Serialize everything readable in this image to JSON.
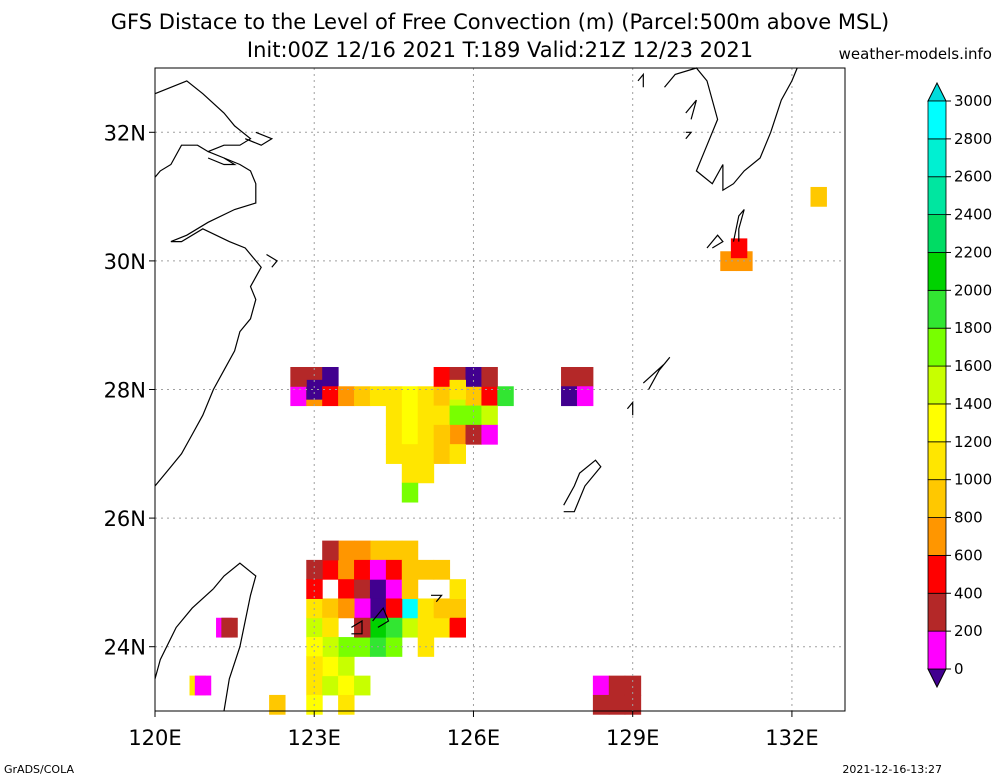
{
  "title_line1": "GFS Distace to the Level of Free Convection (m) (Parcel:500m above MSL)",
  "title_line2": "Init:00Z 12/16 2021 T:189 Valid:21Z 12/23 2021",
  "site": "weather-models.info",
  "footer_left": "GrADS/COLA",
  "footer_right": "2021-12-16-13:27",
  "map": {
    "lon_min": 120,
    "lon_max": 133,
    "lat_min": 23,
    "lat_max": 33,
    "lon_ticks": [
      {
        "value": 120,
        "label": "120E"
      },
      {
        "value": 123,
        "label": "123E"
      },
      {
        "value": 126,
        "label": "126E"
      },
      {
        "value": 129,
        "label": "129E"
      },
      {
        "value": 132,
        "label": "132E"
      }
    ],
    "lat_ticks": [
      {
        "value": 24,
        "label": "24N"
      },
      {
        "value": 26,
        "label": "26N"
      },
      {
        "value": 28,
        "label": "28N"
      },
      {
        "value": 30,
        "label": "30N"
      },
      {
        "value": 32,
        "label": "32N"
      }
    ]
  },
  "colorbar": {
    "labels": [
      "0",
      "200",
      "400",
      "600",
      "800",
      "1000",
      "1200",
      "1400",
      "1600",
      "1800",
      "2000",
      "2200",
      "2400",
      "2600",
      "2800",
      "3000"
    ],
    "colors": [
      "#41008f",
      "#ff00ff",
      "#b42828",
      "#ff0000",
      "#ff9600",
      "#ffc800",
      "#ffe600",
      "#ffff00",
      "#c8ff00",
      "#78ff00",
      "#32e632",
      "#00d200",
      "#00dc64",
      "#00e6a0",
      "#00f0d2",
      "#00ffff"
    ],
    "under_color": "#41008f",
    "over_color": "#00dcdc"
  },
  "colors": {
    "coastline": "#000000",
    "grid": "#a0a0a0"
  },
  "field_cells": [
    {
      "lon": 120.8,
      "lat": 23.4,
      "c": "#ffe600"
    },
    {
      "lon": 120.9,
      "lat": 23.4,
      "c": "#ff00ff"
    },
    {
      "lon": 121.3,
      "lat": 24.3,
      "c": "#ff00ff"
    },
    {
      "lon": 121.4,
      "lat": 24.3,
      "c": "#b42828"
    },
    {
      "lon": 122.3,
      "lat": 23.1,
      "c": "#ffc800"
    },
    {
      "lon": 123.0,
      "lat": 23.4,
      "c": "#ffe600"
    },
    {
      "lon": 123.0,
      "lat": 23.1,
      "c": "#ffff00"
    },
    {
      "lon": 123.3,
      "lat": 23.4,
      "c": "#c8ff00"
    },
    {
      "lon": 123.3,
      "lat": 23.7,
      "c": "#ffff00"
    },
    {
      "lon": 123.6,
      "lat": 23.7,
      "c": "#c8ff00"
    },
    {
      "lon": 123.6,
      "lat": 23.4,
      "c": "#ffff00"
    },
    {
      "lon": 123.6,
      "lat": 23.1,
      "c": "#ffe600"
    },
    {
      "lon": 123.9,
      "lat": 23.4,
      "c": "#c8ff00"
    },
    {
      "lon": 123.9,
      "lat": 24.0,
      "c": "#78ff00"
    },
    {
      "lon": 124.2,
      "lat": 24.0,
      "c": "#32e632"
    },
    {
      "lon": 124.5,
      "lat": 24.0,
      "c": "#78ff00"
    },
    {
      "lon": 124.8,
      "lat": 24.3,
      "c": "#c8ff00"
    },
    {
      "lon": 125.1,
      "lat": 24.0,
      "c": "#ffe600"
    },
    {
      "lon": 125.4,
      "lat": 24.3,
      "c": "#ffe600"
    },
    {
      "lon": 125.7,
      "lat": 24.6,
      "c": "#ffc800"
    },
    {
      "lon": 125.7,
      "lat": 24.9,
      "c": "#ffe600"
    },
    {
      "lon": 123.0,
      "lat": 24.3,
      "c": "#c8ff00"
    },
    {
      "lon": 123.0,
      "lat": 24.6,
      "c": "#ffe600"
    },
    {
      "lon": 123.3,
      "lat": 25.2,
      "c": "#ff0000"
    },
    {
      "lon": 123.6,
      "lat": 25.2,
      "c": "#ff9600"
    },
    {
      "lon": 125.1,
      "lat": 25.2,
      "c": "#ffc800"
    },
    {
      "lon": 125.4,
      "lat": 25.2,
      "c": "#ffc800"
    },
    {
      "lon": 125.7,
      "lat": 24.3,
      "c": "#ff0000"
    },
    {
      "lon": 123.3,
      "lat": 24.6,
      "c": "#ffc800"
    },
    {
      "lon": 123.3,
      "lat": 24.3,
      "c": "#ffe600"
    },
    {
      "lon": 123.6,
      "lat": 24.0,
      "c": "#78ff00"
    },
    {
      "lon": 124.2,
      "lat": 24.3,
      "c": "#00d200"
    },
    {
      "lon": 124.8,
      "lat": 24.6,
      "c": "#00ffff"
    },
    {
      "lon": 125.1,
      "lat": 24.6,
      "c": "#ffe600"
    },
    {
      "lon": 125.4,
      "lat": 24.6,
      "c": "#ffc800"
    },
    {
      "lon": 124.5,
      "lat": 25.5,
      "c": "#ffc800"
    },
    {
      "lon": 124.8,
      "lat": 25.5,
      "c": "#ffc800"
    },
    {
      "lon": 124.2,
      "lat": 25.5,
      "c": "#ffc800"
    },
    {
      "lon": 123.9,
      "lat": 25.5,
      "c": "#ff9600"
    },
    {
      "lon": 123.6,
      "lat": 25.5,
      "c": "#ff9600"
    },
    {
      "lon": 123.3,
      "lat": 25.5,
      "c": "#b42828"
    },
    {
      "lon": 123.0,
      "lat": 25.2,
      "c": "#b42828"
    },
    {
      "lon": 123.0,
      "lat": 24.9,
      "c": "#ff0000"
    },
    {
      "lon": 123.6,
      "lat": 24.9,
      "c": "#ff0000"
    },
    {
      "lon": 123.9,
      "lat": 24.9,
      "c": "#b42828"
    },
    {
      "lon": 124.2,
      "lat": 24.9,
      "c": "#41008f"
    },
    {
      "lon": 124.2,
      "lat": 24.6,
      "c": "#41008f"
    },
    {
      "lon": 123.9,
      "lat": 24.6,
      "c": "#ff00ff"
    },
    {
      "lon": 124.5,
      "lat": 24.9,
      "c": "#ff00ff"
    },
    {
      "lon": 124.5,
      "lat": 24.6,
      "c": "#ff0000"
    },
    {
      "lon": 123.9,
      "lat": 25.2,
      "c": "#ff0000"
    },
    {
      "lon": 124.2,
      "lat": 25.2,
      "c": "#ff00ff"
    },
    {
      "lon": 124.5,
      "lat": 25.2,
      "c": "#ff0000"
    },
    {
      "lon": 124.8,
      "lat": 25.2,
      "c": "#ffc800"
    },
    {
      "lon": 124.8,
      "lat": 24.9,
      "c": "#ffc800"
    },
    {
      "lon": 123.6,
      "lat": 24.6,
      "c": "#ff9600"
    },
    {
      "lon": 124.5,
      "lat": 24.3,
      "c": "#32e632"
    },
    {
      "lon": 123.9,
      "lat": 24.3,
      "c": "#b42828"
    },
    {
      "lon": 123.3,
      "lat": 24.0,
      "c": "#c8ff00"
    },
    {
      "lon": 123.0,
      "lat": 24.0,
      "c": "#ffff00"
    },
    {
      "lon": 123.0,
      "lat": 23.7,
      "c": "#ffe600"
    },
    {
      "lon": 125.1,
      "lat": 24.3,
      "c": "#ffe600"
    },
    {
      "lon": 122.7,
      "lat": 27.9,
      "c": "#ff00ff"
    },
    {
      "lon": 123.0,
      "lat": 28.2,
      "c": "#b42828"
    },
    {
      "lon": 123.0,
      "lat": 27.9,
      "c": "#ff9600"
    },
    {
      "lon": 123.0,
      "lat": 28.0,
      "c": "#41008f"
    },
    {
      "lon": 122.7,
      "lat": 28.2,
      "c": "#b42828"
    },
    {
      "lon": 123.3,
      "lat": 28.2,
      "c": "#41008f"
    },
    {
      "lon": 123.3,
      "lat": 27.9,
      "c": "#ff0000"
    },
    {
      "lon": 123.6,
      "lat": 27.9,
      "c": "#ff9600"
    },
    {
      "lon": 123.9,
      "lat": 27.9,
      "c": "#ffc800"
    },
    {
      "lon": 124.2,
      "lat": 27.9,
      "c": "#ffe600"
    },
    {
      "lon": 124.5,
      "lat": 27.9,
      "c": "#ffe600"
    },
    {
      "lon": 124.8,
      "lat": 27.9,
      "c": "#ffff00"
    },
    {
      "lon": 125.1,
      "lat": 27.9,
      "c": "#ffe600"
    },
    {
      "lon": 125.4,
      "lat": 27.9,
      "c": "#ffc800"
    },
    {
      "lon": 125.7,
      "lat": 27.9,
      "c": "#c8ff00"
    },
    {
      "lon": 126.0,
      "lat": 27.9,
      "c": "#ffc800"
    },
    {
      "lon": 126.3,
      "lat": 27.9,
      "c": "#ff0000"
    },
    {
      "lon": 126.6,
      "lat": 27.9,
      "c": "#32e632"
    },
    {
      "lon": 125.4,
      "lat": 28.2,
      "c": "#ff0000"
    },
    {
      "lon": 125.7,
      "lat": 28.2,
      "c": "#b42828"
    },
    {
      "lon": 126.0,
      "lat": 28.2,
      "c": "#41008f"
    },
    {
      "lon": 126.3,
      "lat": 28.2,
      "c": "#b42828"
    },
    {
      "lon": 124.5,
      "lat": 27.6,
      "c": "#ffe600"
    },
    {
      "lon": 124.8,
      "lat": 27.6,
      "c": "#ffff00"
    },
    {
      "lon": 125.1,
      "lat": 27.6,
      "c": "#ffe600"
    },
    {
      "lon": 125.4,
      "lat": 27.6,
      "c": "#ffe600"
    },
    {
      "lon": 125.7,
      "lat": 27.6,
      "c": "#78ff00"
    },
    {
      "lon": 126.0,
      "lat": 27.6,
      "c": "#78ff00"
    },
    {
      "lon": 126.3,
      "lat": 27.6,
      "c": "#c8ff00"
    },
    {
      "lon": 125.7,
      "lat": 27.3,
      "c": "#ff9600"
    },
    {
      "lon": 126.0,
      "lat": 27.3,
      "c": "#b42828"
    },
    {
      "lon": 126.3,
      "lat": 27.3,
      "c": "#ff00ff"
    },
    {
      "lon": 124.5,
      "lat": 27.3,
      "c": "#ffe600"
    },
    {
      "lon": 124.8,
      "lat": 27.3,
      "c": "#ffff00"
    },
    {
      "lon": 125.1,
      "lat": 27.3,
      "c": "#ffe600"
    },
    {
      "lon": 125.4,
      "lat": 27.3,
      "c": "#ffc800"
    },
    {
      "lon": 124.5,
      "lat": 27.0,
      "c": "#ffe600"
    },
    {
      "lon": 124.8,
      "lat": 27.0,
      "c": "#ffe600"
    },
    {
      "lon": 125.1,
      "lat": 27.0,
      "c": "#ffe600"
    },
    {
      "lon": 125.4,
      "lat": 27.0,
      "c": "#ffc800"
    },
    {
      "lon": 125.7,
      "lat": 27.0,
      "c": "#ffe600"
    },
    {
      "lon": 124.8,
      "lat": 26.7,
      "c": "#ffe600"
    },
    {
      "lon": 125.1,
      "lat": 26.7,
      "c": "#ffe600"
    },
    {
      "lon": 124.8,
      "lat": 26.4,
      "c": "#78ff00"
    },
    {
      "lon": 125.7,
      "lat": 28.0,
      "c": "#ffe600"
    },
    {
      "lon": 127.8,
      "lat": 28.2,
      "c": "#b42828"
    },
    {
      "lon": 128.1,
      "lat": 28.2,
      "c": "#b42828"
    },
    {
      "lon": 127.8,
      "lat": 27.9,
      "c": "#41008f"
    },
    {
      "lon": 128.1,
      "lat": 27.9,
      "c": "#ff00ff"
    },
    {
      "lon": 130.8,
      "lat": 30.0,
      "c": "#ff9600"
    },
    {
      "lon": 131.1,
      "lat": 30.0,
      "c": "#ff9600"
    },
    {
      "lon": 131.0,
      "lat": 30.2,
      "c": "#ff0000"
    },
    {
      "lon": 132.5,
      "lat": 31.0,
      "c": "#ffc800"
    },
    {
      "lon": 128.4,
      "lat": 23.4,
      "c": "#ff00ff"
    },
    {
      "lon": 128.7,
      "lat": 23.4,
      "c": "#b42828"
    },
    {
      "lon": 128.7,
      "lat": 23.1,
      "c": "#b42828"
    },
    {
      "lon": 128.4,
      "lat": 23.1,
      "c": "#b42828"
    },
    {
      "lon": 129.0,
      "lat": 23.4,
      "c": "#b42828"
    },
    {
      "lon": 129.0,
      "lat": 23.1,
      "c": "#b42828"
    }
  ],
  "coastlines": [
    [
      [
        120.0,
        32.6
      ],
      [
        120.6,
        32.8
      ],
      [
        120.9,
        32.6
      ],
      [
        121.3,
        32.3
      ],
      [
        121.5,
        32.1
      ],
      [
        121.8,
        31.9
      ],
      [
        121.6,
        31.8
      ],
      [
        121.3,
        31.8
      ],
      [
        121.0,
        31.7
      ],
      [
        120.8,
        31.8
      ],
      [
        120.5,
        31.8
      ],
      [
        120.3,
        31.5
      ],
      [
        120.1,
        31.4
      ],
      [
        120.0,
        31.3
      ]
    ],
    [
      [
        121.3,
        31.6
      ],
      [
        121.6,
        31.5
      ],
      [
        121.8,
        31.4
      ],
      [
        121.9,
        31.2
      ],
      [
        121.9,
        30.9
      ],
      [
        121.5,
        30.8
      ],
      [
        121.0,
        30.6
      ],
      [
        120.6,
        30.4
      ],
      [
        120.3,
        30.3
      ],
      [
        120.5,
        30.3
      ],
      [
        120.9,
        30.5
      ],
      [
        121.4,
        30.3
      ],
      [
        121.7,
        30.2
      ],
      [
        122.0,
        29.9
      ],
      [
        121.8,
        29.6
      ],
      [
        121.9,
        29.4
      ],
      [
        121.8,
        29.1
      ],
      [
        121.6,
        28.9
      ],
      [
        121.5,
        28.6
      ],
      [
        121.3,
        28.3
      ],
      [
        121.1,
        28.0
      ],
      [
        120.9,
        27.6
      ],
      [
        120.7,
        27.3
      ],
      [
        120.5,
        27.0
      ],
      [
        120.3,
        26.8
      ],
      [
        120.0,
        26.5
      ]
    ],
    [
      [
        121.0,
        31.7
      ],
      [
        121.3,
        31.6
      ],
      [
        121.5,
        31.5
      ],
      [
        121.3,
        31.5
      ],
      [
        121.0,
        31.6
      ]
    ],
    [
      [
        121.7,
        31.9
      ],
      [
        122.0,
        31.8
      ],
      [
        122.2,
        31.9
      ],
      [
        121.9,
        32.0
      ]
    ],
    [
      [
        122.1,
        30.1
      ],
      [
        122.3,
        30.0
      ],
      [
        122.2,
        29.9
      ]
    ],
    [
      [
        121.1,
        24.9
      ],
      [
        121.3,
        25.1
      ],
      [
        121.6,
        25.3
      ],
      [
        121.9,
        25.1
      ],
      [
        121.8,
        24.8
      ],
      [
        121.7,
        24.4
      ],
      [
        121.6,
        24.0
      ],
      [
        121.4,
        23.5
      ],
      [
        121.3,
        23.0
      ],
      [
        121.2,
        22.9
      ]
    ],
    [
      [
        120.0,
        23.5
      ],
      [
        120.1,
        23.8
      ],
      [
        120.4,
        24.3
      ],
      [
        120.7,
        24.6
      ],
      [
        121.1,
        24.9
      ]
    ],
    [
      [
        124.1,
        24.4
      ],
      [
        124.3,
        24.6
      ],
      [
        124.4,
        24.4
      ],
      [
        124.2,
        24.3
      ]
    ],
    [
      [
        123.7,
        24.3
      ],
      [
        123.9,
        24.4
      ],
      [
        123.9,
        24.2
      ],
      [
        123.7,
        24.2
      ]
    ],
    [
      [
        125.2,
        24.8
      ],
      [
        125.4,
        24.8
      ],
      [
        125.3,
        24.7
      ]
    ],
    [
      [
        127.7,
        26.2
      ],
      [
        127.9,
        26.5
      ],
      [
        128.0,
        26.7
      ],
      [
        128.3,
        26.9
      ],
      [
        128.4,
        26.8
      ],
      [
        128.1,
        26.5
      ],
      [
        127.9,
        26.1
      ],
      [
        127.7,
        26.1
      ]
    ],
    [
      [
        129.2,
        28.1
      ],
      [
        129.6,
        28.4
      ],
      [
        129.7,
        28.5
      ],
      [
        129.5,
        28.3
      ],
      [
        129.3,
        28.0
      ]
    ],
    [
      [
        128.9,
        27.7
      ],
      [
        129.0,
        27.8
      ],
      [
        129.0,
        27.6
      ]
    ],
    [
      [
        130.4,
        30.2
      ],
      [
        130.6,
        30.4
      ],
      [
        130.7,
        30.3
      ],
      [
        130.5,
        30.2
      ]
    ],
    [
      [
        130.9,
        30.3
      ],
      [
        131.0,
        30.7
      ],
      [
        131.1,
        30.8
      ],
      [
        131.0,
        30.5
      ],
      [
        131.0,
        30.3
      ]
    ],
    [
      [
        129.6,
        32.7
      ],
      [
        129.8,
        32.9
      ],
      [
        130.2,
        33.0
      ],
      [
        130.4,
        32.8
      ],
      [
        130.5,
        32.5
      ],
      [
        130.6,
        32.2
      ],
      [
        130.4,
        31.8
      ],
      [
        130.2,
        31.4
      ],
      [
        130.5,
        31.2
      ],
      [
        130.7,
        31.5
      ],
      [
        130.7,
        31.1
      ],
      [
        130.9,
        31.2
      ],
      [
        131.1,
        31.4
      ],
      [
        131.4,
        31.6
      ],
      [
        131.6,
        32.0
      ],
      [
        131.8,
        32.5
      ],
      [
        132.0,
        32.8
      ],
      [
        132.1,
        33.0
      ]
    ],
    [
      [
        129.1,
        32.8
      ],
      [
        129.2,
        32.9
      ],
      [
        129.2,
        32.7
      ]
    ],
    [
      [
        130.0,
        32.3
      ],
      [
        130.2,
        32.5
      ],
      [
        130.1,
        32.2
      ]
    ],
    [
      [
        130.0,
        32.0
      ],
      [
        130.1,
        32.0
      ],
      [
        130.0,
        31.9
      ]
    ]
  ]
}
